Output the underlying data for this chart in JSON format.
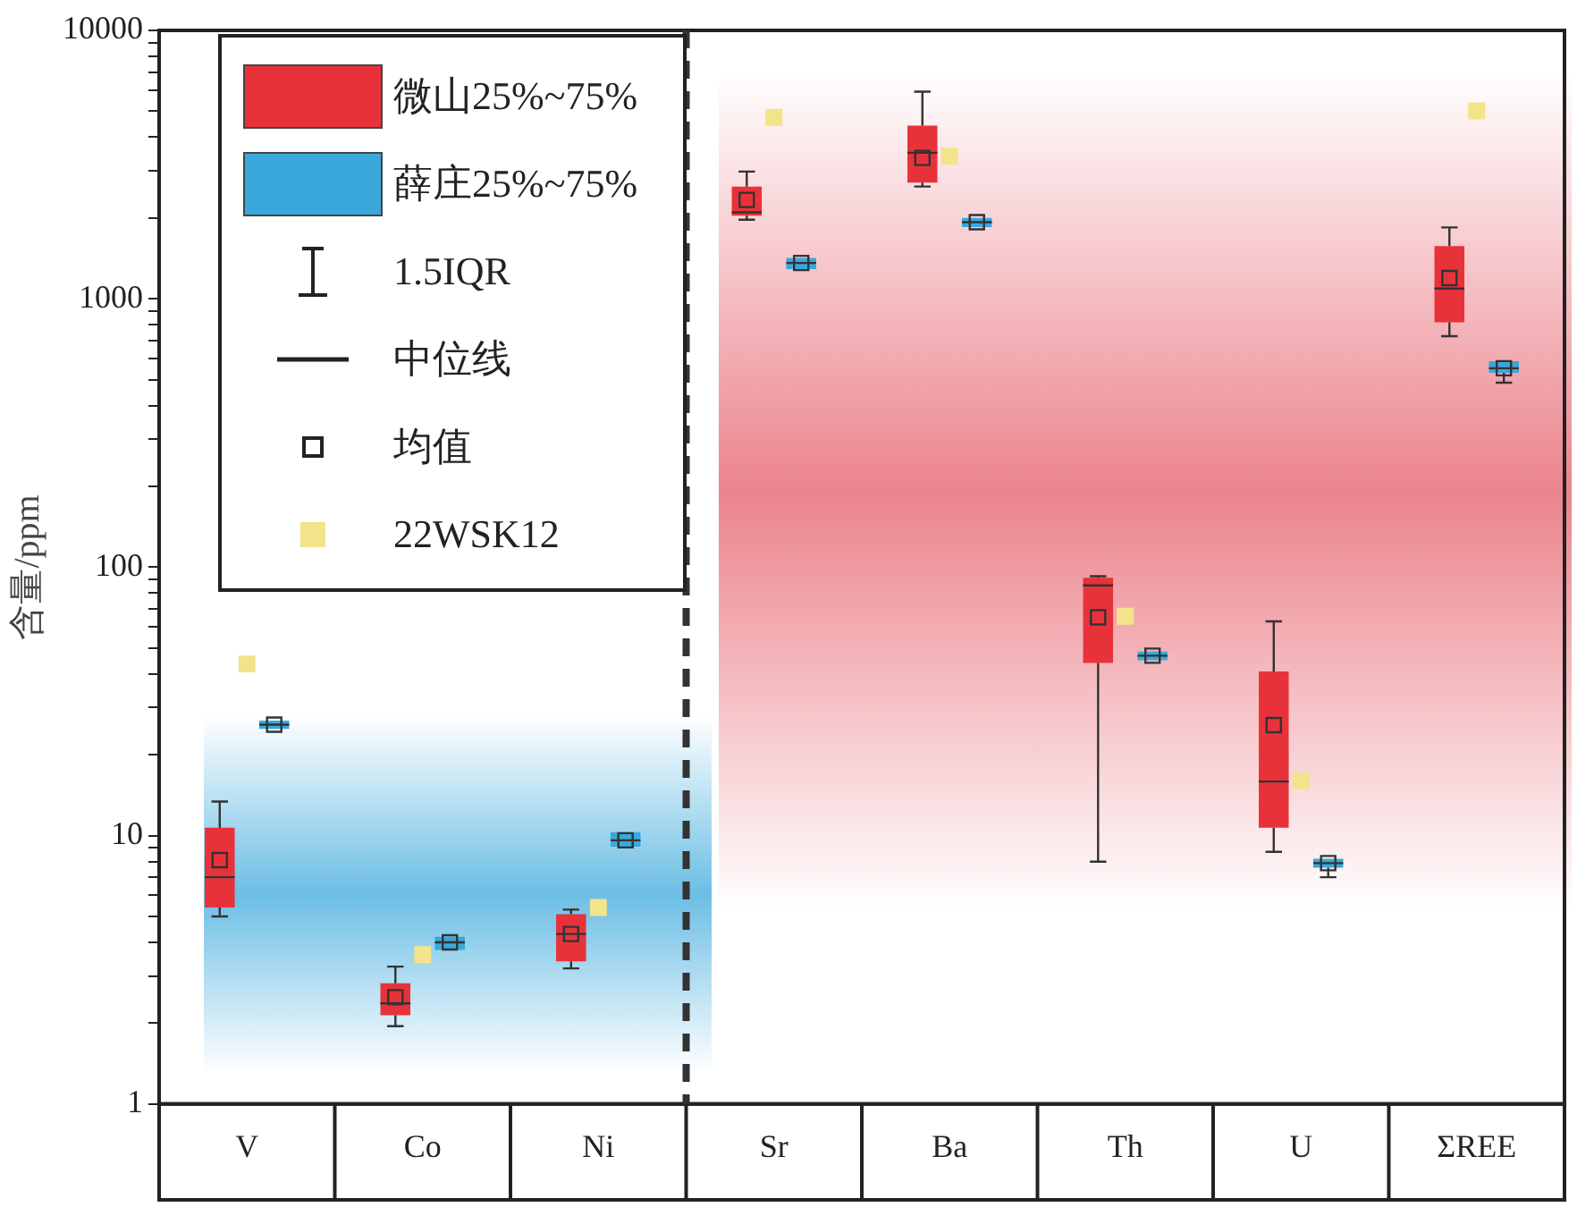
{
  "chart_data": {
    "type": "box",
    "categories": [
      "V",
      "Co",
      "Ni",
      "Sr",
      "Ba",
      "Th",
      "U",
      "ΣREE"
    ],
    "ylabel": "含量/ppm",
    "log": true,
    "ylim": [
      1,
      10000
    ],
    "yticks": [
      1,
      {
        "value": 2,
        "label": null
      },
      {
        "value": 3,
        "label": null
      },
      {
        "value": 4,
        "label": null
      },
      {
        "value": 5,
        "label": null
      },
      {
        "value": 6,
        "label": null
      },
      {
        "value": 7,
        "label": null
      },
      {
        "value": 8,
        "label": null
      },
      {
        "value": 9,
        "label": null
      },
      10,
      {
        "value": 20,
        "label": null
      },
      {
        "value": 30,
        "label": null
      },
      {
        "value": 40,
        "label": null
      },
      {
        "value": 50,
        "label": null
      },
      {
        "value": 60,
        "label": null
      },
      {
        "value": 70,
        "label": null
      },
      {
        "value": 80,
        "label": null
      },
      {
        "value": 90,
        "label": null
      },
      100,
      {
        "value": 200,
        "label": null
      },
      {
        "value": 300,
        "label": null
      },
      {
        "value": 400,
        "label": null
      },
      {
        "value": 500,
        "label": null
      },
      {
        "value": 600,
        "label": null
      },
      {
        "value": 700,
        "label": null
      },
      {
        "value": 800,
        "label": null
      },
      {
        "value": 900,
        "label": null
      },
      1000,
      {
        "value": 2000,
        "label": null
      },
      {
        "value": 3000,
        "label": null
      },
      {
        "value": 4000,
        "label": null
      },
      {
        "value": 5000,
        "label": null
      },
      {
        "value": 6000,
        "label": null
      },
      {
        "value": 7000,
        "label": null
      },
      {
        "value": 8000,
        "label": null
      },
      {
        "value": 9000,
        "label": null
      },
      10000
    ],
    "legend": "top left",
    "grid": false,
    "annotations": [
      "1.5IQR",
      "中位线",
      "均值"
    ],
    "series": [
      {
        "name": "微山25%~75%",
        "color": "#e8323a",
        "boxes": [
          {
            "low": 5.0,
            "q1": 5.4,
            "median": 7.0,
            "q3": 10.7,
            "high": 13.4,
            "mean": 8.1
          },
          {
            "low": 1.95,
            "q1": 2.14,
            "median": 2.37,
            "q3": 2.82,
            "high": 3.25,
            "mean": 2.5
          },
          {
            "low": 3.2,
            "q1": 3.4,
            "median": 4.3,
            "q3": 5.1,
            "high": 5.3,
            "mean": 4.3
          },
          {
            "low": 1970,
            "q1": 2040,
            "median": 2100,
            "q3": 2620,
            "high": 2980,
            "mean": 2335
          },
          {
            "low": 2620,
            "q1": 2710,
            "median": 3500,
            "q3": 4420,
            "high": 5910,
            "mean": 3350
          },
          {
            "low": 8.0,
            "q1": 44,
            "median": 85.5,
            "q3": 91.3,
            "high": 92.5,
            "mean": 65
          },
          {
            "low": 8.7,
            "q1": 10.7,
            "median": 15.9,
            "q3": 40.9,
            "high": 62.8,
            "mean": 25.8
          },
          {
            "low": 726,
            "q1": 818,
            "median": 1092,
            "q3": 1573,
            "high": 1845,
            "mean": 1195
          }
        ]
      },
      {
        "name": "薛庄25%~75%",
        "color": "#3aa8dc",
        "boxes": [
          {
            "low": 25,
            "q1": 25,
            "median": 25.9,
            "q3": 26.8,
            "high": 26.8,
            "mean": 25.9
          },
          {
            "low": 3.75,
            "q1": 3.75,
            "median": 4.0,
            "q3": 4.2,
            "high": 4.2,
            "mean": 4.0
          },
          {
            "low": 9.1,
            "q1": 9.1,
            "median": 9.6,
            "q3": 10.3,
            "high": 10.3,
            "mean": 9.6
          },
          {
            "low": 1290,
            "q1": 1290,
            "median": 1360,
            "q3": 1420,
            "high": 1420,
            "mean": 1360
          },
          {
            "low": 1850,
            "q1": 1850,
            "median": 1930,
            "q3": 2000,
            "high": 2000,
            "mean": 1930
          },
          {
            "low": 45,
            "q1": 45,
            "median": 46.8,
            "q3": 48.5,
            "high": 48.5,
            "mean": 46.8
          },
          {
            "low": 7.0,
            "q1": 7.6,
            "median": 7.9,
            "q3": 8.2,
            "high": 8.2,
            "mean": 7.9
          },
          {
            "low": 487,
            "q1": 530,
            "median": 551,
            "q3": 585,
            "high": 585,
            "mean": 551
          }
        ]
      },
      {
        "name": "22WSK12",
        "type": "scatter",
        "marker": "square",
        "color": "#f3e38a",
        "x": [
          "V",
          "Co",
          "Ni",
          "Sr",
          "Ba",
          "Th",
          "U",
          "ΣREE"
        ],
        "values": [
          43.6,
          3.6,
          5.4,
          4740,
          3400,
          65.7,
          16,
          5010
        ]
      }
    ]
  }
}
